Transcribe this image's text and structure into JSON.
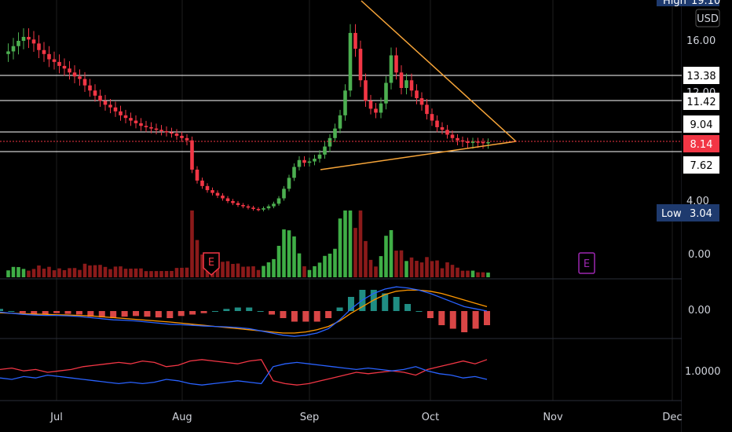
{
  "chart_data": {
    "type": "candlestick",
    "currency": "USD",
    "price_axis": {
      "ticks": [
        "16.00",
        "12.00",
        "4.00"
      ]
    },
    "time_axis": {
      "labels": [
        "Jul",
        "Aug",
        "Sep",
        "Oct",
        "Nov",
        "Dec"
      ]
    },
    "high": {
      "label": "High",
      "value": "19.10"
    },
    "low": {
      "label": "Low",
      "value": "3.04"
    },
    "last_price": "8.14",
    "horizontal_levels": [
      {
        "value": "13.38",
        "color": "#ffffff"
      },
      {
        "value": "11.42",
        "color": "#ffffff"
      },
      {
        "value": "9.04",
        "color": "#ffffff"
      },
      {
        "value": "7.62",
        "color": "#ffffff"
      }
    ],
    "earnings_markers": [
      {
        "label": "E",
        "color": "#f23645"
      },
      {
        "label": "E",
        "color": "#9c27b0"
      }
    ],
    "candles_path": [
      15.0,
      15.2,
      15.6,
      16.0,
      16.3,
      16.1,
      15.8,
      15.3,
      15.0,
      14.6,
      14.4,
      14.1,
      13.9,
      13.6,
      13.3,
      13.1,
      12.6,
      12.2,
      11.8,
      11.4,
      11.1,
      10.9,
      10.6,
      10.3,
      10.1,
      9.9,
      9.7,
      9.5,
      9.4,
      9.3,
      9.2,
      9.1,
      9.0,
      8.9,
      8.7,
      8.5,
      8.3,
      6.3,
      5.5,
      5.1,
      4.8,
      4.6,
      4.4,
      4.2,
      4.0,
      3.85,
      3.7,
      3.6,
      3.5,
      3.4,
      3.35,
      3.45,
      3.6,
      3.8,
      4.2,
      4.9,
      5.7,
      6.5,
      7.0,
      6.8,
      6.9,
      7.1,
      7.4,
      7.9,
      8.5,
      9.3,
      10.3,
      12.2,
      16.6,
      15.4,
      13.0,
      11.4,
      10.8,
      10.5,
      11.2,
      12.8,
      14.9,
      13.6,
      12.4,
      13.0,
      12.2,
      11.6,
      11.1,
      10.4,
      9.9,
      9.4,
      9.2,
      8.8,
      8.5,
      8.3,
      8.2,
      8.1,
      8.2,
      8.15,
      8.1,
      8.14
    ],
    "volume_axis": {
      "tick": "0.00"
    },
    "macd": {
      "axis_tick": "0.00",
      "macd_color": "#2962ff",
      "signal_color": "#ff9800",
      "macd_line": [
        -0.05,
        -0.1,
        -0.15,
        -0.18,
        -0.2,
        -0.2,
        -0.22,
        -0.25,
        -0.3,
        -0.35,
        -0.4,
        -0.42,
        -0.45,
        -0.5,
        -0.55,
        -0.6,
        -0.62,
        -0.65,
        -0.68,
        -0.7,
        -0.72,
        -0.75,
        -0.8,
        -0.9,
        -1.0,
        -1.1,
        -1.15,
        -1.1,
        -1.0,
        -0.8,
        -0.4,
        0.1,
        0.5,
        0.8,
        1.0,
        1.1,
        1.05,
        0.95,
        0.8,
        0.6,
        0.4,
        0.2,
        0.1,
        0.0
      ],
      "signal_line": [
        -0.08,
        -0.1,
        -0.12,
        -0.14,
        -0.15,
        -0.17,
        -0.18,
        -0.2,
        -0.22,
        -0.26,
        -0.3,
        -0.34,
        -0.38,
        -0.42,
        -0.46,
        -0.5,
        -0.55,
        -0.6,
        -0.65,
        -0.7,
        -0.75,
        -0.8,
        -0.85,
        -0.9,
        -0.95,
        -1.0,
        -1.0,
        -0.95,
        -0.85,
        -0.7,
        -0.45,
        -0.1,
        0.2,
        0.5,
        0.75,
        0.9,
        0.95,
        0.95,
        0.9,
        0.8,
        0.65,
        0.5,
        0.35,
        0.2
      ]
    },
    "dmi": {
      "axis_tick": "1.0000",
      "line_a_color": "#f23645",
      "line_b_color": "#2962ff",
      "line_a": [
        0.6,
        0.65,
        0.55,
        0.6,
        0.5,
        0.55,
        0.6,
        0.7,
        0.75,
        0.8,
        0.85,
        0.8,
        0.9,
        0.85,
        0.7,
        0.75,
        0.9,
        0.95,
        0.9,
        0.85,
        0.8,
        0.9,
        0.95,
        0.2,
        0.1,
        0.05,
        0.1,
        0.2,
        0.3,
        0.4,
        0.5,
        0.45,
        0.5,
        0.55,
        0.5,
        0.4,
        0.6,
        0.7,
        0.8,
        0.9,
        0.8,
        0.95
      ],
      "line_b": [
        0.3,
        0.25,
        0.35,
        0.3,
        0.4,
        0.35,
        0.3,
        0.25,
        0.2,
        0.15,
        0.1,
        0.15,
        0.1,
        0.15,
        0.25,
        0.2,
        0.1,
        0.05,
        0.1,
        0.15,
        0.2,
        0.15,
        0.1,
        0.7,
        0.8,
        0.85,
        0.8,
        0.75,
        0.7,
        0.65,
        0.6,
        0.65,
        0.6,
        0.55,
        0.6,
        0.7,
        0.55,
        0.45,
        0.4,
        0.3,
        0.35,
        0.25
      ]
    }
  }
}
